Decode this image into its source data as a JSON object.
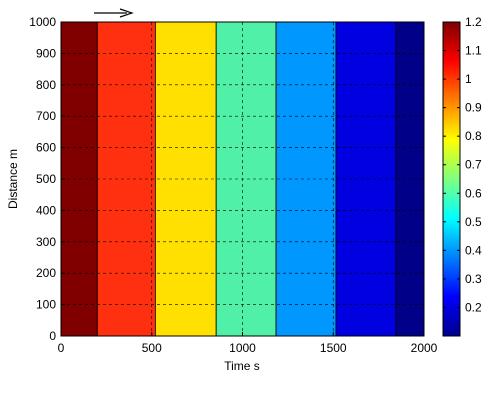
{
  "chart_data": {
    "type": "heatmap",
    "title": "",
    "xlabel": "Time s",
    "ylabel": "Distance m",
    "xlim": [
      0,
      2000
    ],
    "ylim": [
      0,
      1000
    ],
    "x_ticks": [
      "0",
      "500",
      "1000",
      "1500",
      "2000"
    ],
    "y_ticks": [
      "0",
      "100",
      "200",
      "300",
      "400",
      "500",
      "600",
      "700",
      "800",
      "900",
      "1000"
    ],
    "grid": true,
    "grid_style": "dashed",
    "colormap": "jet",
    "colorbar": {
      "range": [
        0.1,
        1.2
      ],
      "ticks": [
        "0.2",
        "0.3",
        "0.4",
        "0.5",
        "0.6",
        "0.7",
        "0.8",
        "0.9",
        "1",
        "1.1",
        "1.2"
      ]
    },
    "bands": [
      {
        "x_start": 0,
        "x_end": 200,
        "value": 1.18,
        "color": "#800000"
      },
      {
        "x_start": 200,
        "x_end": 520,
        "value": 1.05,
        "color": "#ff3010"
      },
      {
        "x_start": 520,
        "x_end": 855,
        "value": 0.77,
        "color": "#ffe000"
      },
      {
        "x_start": 855,
        "x_end": 1185,
        "value": 0.59,
        "color": "#50f0a8"
      },
      {
        "x_start": 1185,
        "x_end": 1515,
        "value": 0.43,
        "color": "#0098ff"
      },
      {
        "x_start": 1515,
        "x_end": 1845,
        "value": 0.22,
        "color": "#0000e0"
      },
      {
        "x_start": 1845,
        "x_end": 2000,
        "value": 0.13,
        "color": "#000088"
      }
    ],
    "annotation": {
      "type": "arrow",
      "direction": "right"
    }
  }
}
